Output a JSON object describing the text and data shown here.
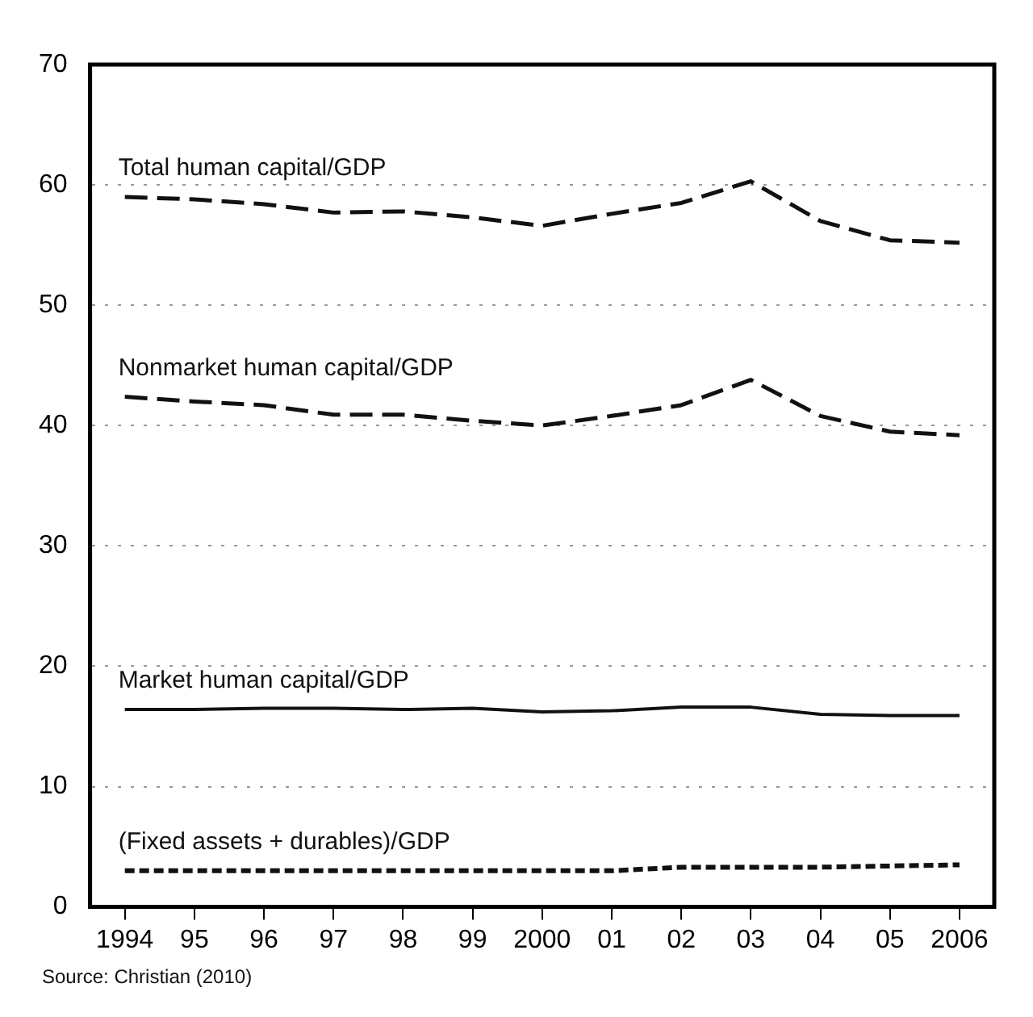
{
  "chart_data": {
    "type": "line",
    "categories": [
      "1994",
      "95",
      "96",
      "97",
      "98",
      "99",
      "2000",
      "01",
      "02",
      "03",
      "04",
      "05",
      "2006"
    ],
    "series": [
      {
        "name": "Total human capital/GDP",
        "color": "#111111",
        "line_style": "dashed",
        "values": [
          59.0,
          58.8,
          58.4,
          57.7,
          57.8,
          57.3,
          56.6,
          57.6,
          58.5,
          60.3,
          57.0,
          55.4,
          55.2
        ]
      },
      {
        "name": "Nonmarket human capital/GDP",
        "color": "#111111",
        "line_style": "dashed",
        "values": [
          42.4,
          42.0,
          41.7,
          40.9,
          40.9,
          40.4,
          40.0,
          40.8,
          41.7,
          43.8,
          40.8,
          39.5,
          39.2
        ]
      },
      {
        "name": "Market human capital/GDP",
        "color": "#111111",
        "line_style": "solid",
        "values": [
          16.4,
          16.4,
          16.5,
          16.5,
          16.4,
          16.5,
          16.2,
          16.3,
          16.6,
          16.6,
          16.0,
          15.9,
          15.9
        ]
      },
      {
        "name": "(Fixed assets + durables)/GDP",
        "color": "#111111",
        "line_style": "dotted",
        "values": [
          3.0,
          3.0,
          3.0,
          3.0,
          3.0,
          3.0,
          3.0,
          3.0,
          3.3,
          3.3,
          3.3,
          3.4,
          3.5
        ]
      }
    ],
    "ylim": [
      0,
      70
    ],
    "yticks": [
      0,
      10,
      20,
      30,
      40,
      50,
      60,
      70
    ],
    "grid": "y",
    "legend": false,
    "marker": "none",
    "annotations": [
      "Source: Christian (2010)"
    ]
  }
}
